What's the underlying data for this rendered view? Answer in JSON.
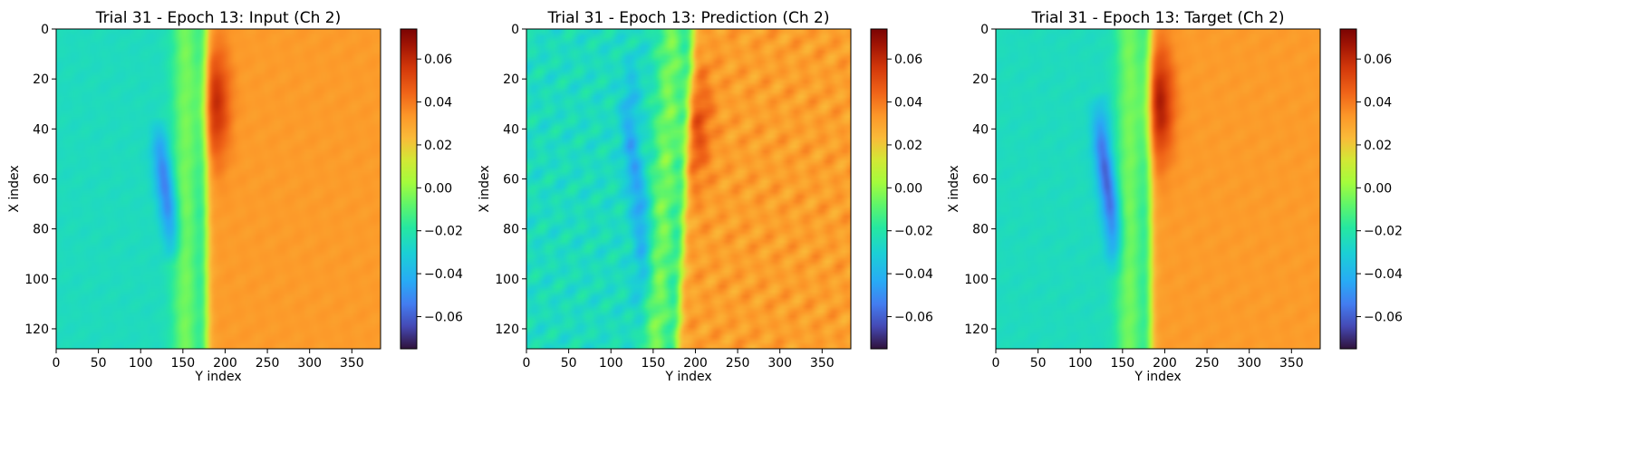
{
  "chart_data": [
    {
      "type": "heatmap",
      "title": "Trial 31 - Epoch 13: Input (Ch 2)",
      "xlabel": "Y index",
      "ylabel": "X index",
      "xlim": [
        0,
        384
      ],
      "ylim": [
        128,
        0
      ],
      "xticks": [
        0,
        50,
        100,
        150,
        200,
        250,
        300,
        350
      ],
      "yticks": [
        0,
        20,
        40,
        60,
        80,
        100,
        120
      ],
      "colorbar": {
        "colormap": "turbo",
        "vmin": -0.075,
        "vmax": 0.074,
        "ticks": [
          0.06,
          0.04,
          0.02,
          0.0,
          -0.02,
          -0.04,
          -0.06
        ],
        "tick_labels": [
          "0.06",
          "0.04",
          "0.02",
          "0.00",
          "−0.02",
          "−0.04",
          "−0.06"
        ]
      },
      "field": {
        "left_value": -0.025,
        "right_value": 0.032,
        "front_position": 178,
        "front_slope": 0.0,
        "front_peak": 0.06,
        "front_peak_center_row": 30,
        "trough_value": -0.055,
        "trough_column": 130,
        "trough_rows": [
          35,
          95
        ],
        "noise": 0.25
      }
    },
    {
      "type": "heatmap",
      "title": "Trial 31 - Epoch 13: Prediction (Ch 2)",
      "xlabel": "Y index",
      "ylabel": "X index",
      "xlim": [
        0,
        384
      ],
      "ylim": [
        128,
        0
      ],
      "xticks": [
        0,
        50,
        100,
        150,
        200,
        250,
        300,
        350
      ],
      "yticks": [
        0,
        20,
        40,
        60,
        80,
        100,
        120
      ],
      "colorbar": {
        "colormap": "turbo",
        "vmin": -0.075,
        "vmax": 0.074,
        "ticks": [
          0.06,
          0.04,
          0.02,
          0.0,
          -0.02,
          -0.04,
          -0.06
        ],
        "tick_labels": [
          "0.06",
          "0.04",
          "0.02",
          "0.00",
          "−0.02",
          "−0.04",
          "−0.06"
        ]
      },
      "field": {
        "left_value": -0.025,
        "right_value": 0.031,
        "front_position": 188,
        "front_slope": -0.15,
        "front_peak": 0.05,
        "front_peak_center_row": 40,
        "trough_value": -0.045,
        "trough_column": 130,
        "trough_rows": [
          5,
          120
        ],
        "noise": 1.0
      }
    },
    {
      "type": "heatmap",
      "title": "Trial 31 - Epoch 13: Target (Ch 2)",
      "xlabel": "Y index",
      "ylabel": "X index",
      "xlim": [
        0,
        384
      ],
      "ylim": [
        128,
        0
      ],
      "xticks": [
        0,
        50,
        100,
        150,
        200,
        250,
        300,
        350
      ],
      "yticks": [
        0,
        20,
        40,
        60,
        80,
        100,
        120
      ],
      "colorbar": {
        "colormap": "turbo",
        "vmin": -0.075,
        "vmax": 0.074,
        "ticks": [
          0.06,
          0.04,
          0.02,
          0.0,
          -0.02,
          -0.04,
          -0.06
        ],
        "tick_labels": [
          "0.06",
          "0.04",
          "0.02",
          "0.00",
          "−0.02",
          "−0.04",
          "−0.06"
        ]
      },
      "field": {
        "left_value": -0.025,
        "right_value": 0.032,
        "front_position": 183,
        "front_slope": 0.0,
        "front_peak": 0.065,
        "front_peak_center_row": 30,
        "trough_value": -0.06,
        "trough_column": 132,
        "trough_rows": [
          25,
          100
        ],
        "noise": 0.25
      }
    }
  ]
}
